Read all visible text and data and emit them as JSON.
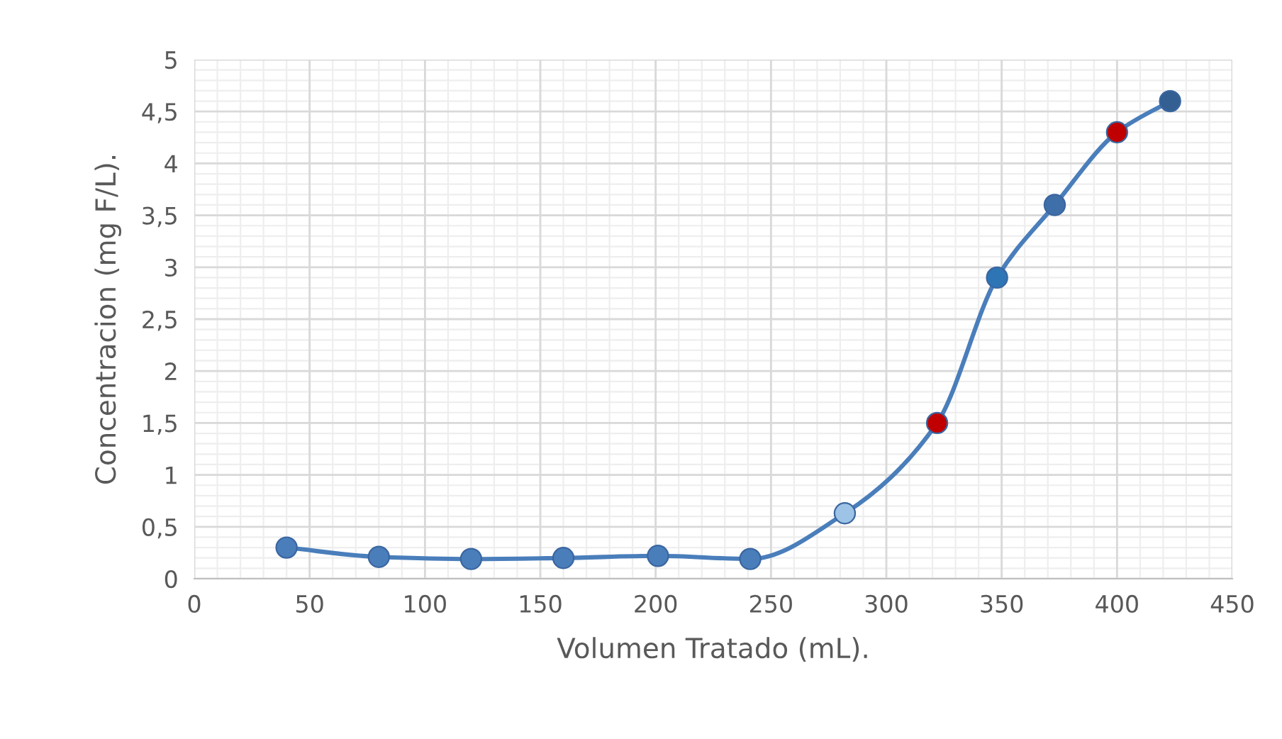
{
  "chart_data": {
    "type": "line",
    "xlabel": "Volumen Tratado (mL).",
    "ylabel": "Concentracion (mg F/L).",
    "x": [
      40,
      80,
      120,
      160,
      201,
      241,
      282,
      322,
      348,
      373,
      400,
      423
    ],
    "series": [
      {
        "color": "#4a7ebb",
        "values": [
          0.3,
          0.21,
          0.19,
          0.2,
          0.22,
          0.19,
          0.63,
          1.5,
          2.9,
          3.6,
          4.3,
          4.6
        ],
        "colors": [
          "#4a7ebb",
          "#4a7ebb",
          "#4a7ebb",
          "#4a7ebb",
          "#4a7ebb",
          "#4a7ebb",
          "#9dc3e6",
          "#c00000",
          "#2e75b6",
          "#3f6fa8",
          "#c00000",
          "#335f92"
        ]
      }
    ],
    "marker": "circle",
    "line_style": "solid",
    "grid": true,
    "xlim": [
      0,
      450
    ],
    "xticks": [
      0,
      50,
      100,
      150,
      200,
      250,
      300,
      350,
      400,
      450
    ],
    "ylim": [
      0,
      5
    ],
    "yticks": [
      {
        "value": 0,
        "label": "0"
      },
      {
        "value": 0.5,
        "label": "0,5"
      },
      {
        "value": 1,
        "label": "1"
      },
      {
        "value": 1.5,
        "label": "1,5"
      },
      {
        "value": 2,
        "label": "2"
      },
      {
        "value": 2.5,
        "label": "2,5"
      },
      {
        "value": 3,
        "label": "3"
      },
      {
        "value": 3.5,
        "label": "3,5"
      },
      {
        "value": 4,
        "label": "4"
      },
      {
        "value": 4.5,
        "label": "4,5"
      },
      {
        "value": 5,
        "label": "5"
      }
    ]
  }
}
